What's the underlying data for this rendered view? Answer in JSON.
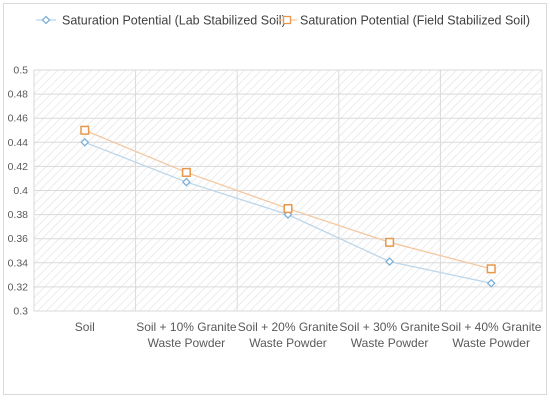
{
  "chart_data": {
    "type": "line",
    "title": "",
    "xlabel": "",
    "ylabel": "",
    "categories": [
      [
        "Soil"
      ],
      [
        "Soil + 10% Granite",
        "Waste Powder"
      ],
      [
        "Soil + 20% Granite",
        "Waste Powder"
      ],
      [
        "Soil + 30% Granite",
        "Waste Powder"
      ],
      [
        "Soil + 40% Granite",
        "Waste Powder"
      ]
    ],
    "ylim": [
      0.3,
      0.5
    ],
    "yticks": [
      "0.3",
      "0.32",
      "0.34",
      "0.36",
      "0.38",
      "0.4",
      "0.42",
      "0.44",
      "0.46",
      "0.48",
      "0.5"
    ],
    "grid": true,
    "legend_position": "top",
    "series": [
      {
        "name": "Saturation Potential (Lab Stabilized Soil)",
        "values": [
          0.44,
          0.407,
          0.38,
          0.341,
          0.323
        ],
        "color": "#7cafd6",
        "line_color": "#bcd6ea",
        "marker": "diamond"
      },
      {
        "name": "Saturation Potential (Field Stabilized Soil)",
        "values": [
          0.45,
          0.415,
          0.385,
          0.357,
          0.335
        ],
        "color": "#e8974c",
        "line_color": "#f3c8a0",
        "marker": "square"
      }
    ]
  }
}
